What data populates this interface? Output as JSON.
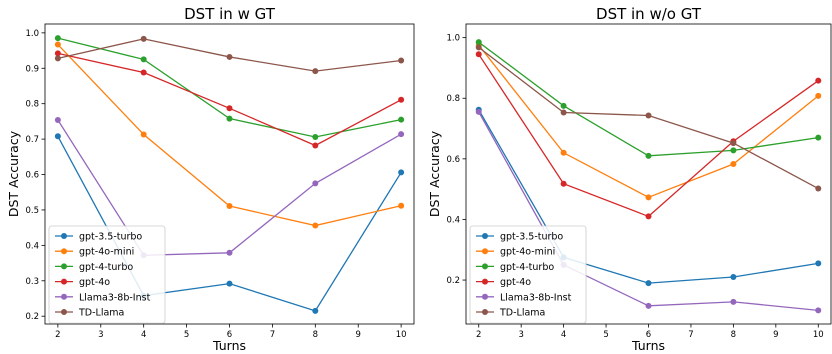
{
  "chart_data": [
    {
      "type": "line",
      "title": "DST in w GT",
      "xlabel": "Turns",
      "ylabel": "DST Accuracy",
      "x": [
        2,
        4,
        6,
        8,
        10
      ],
      "xticks": [
        2,
        3,
        4,
        5,
        6,
        7,
        8,
        9,
        10
      ],
      "xlim": [
        1.7,
        10.3
      ],
      "yticks": [
        0.2,
        0.3,
        0.4,
        0.5,
        0.6,
        0.7,
        0.8,
        0.9,
        1.0
      ],
      "ytick_labels": [
        "0.2",
        "0.3",
        "0.4",
        "0.5",
        "0.6",
        "0.7",
        "0.8",
        "0.9",
        "1.0"
      ],
      "ylim": [
        0.178,
        1.025
      ],
      "legend": "lower-left",
      "grid": false,
      "series": [
        {
          "name": "gpt-3.5-turbo",
          "color": "#1f77b4",
          "values": [
            0.708,
            0.258,
            0.292,
            0.215,
            0.606
          ]
        },
        {
          "name": "gpt-4o-mini",
          "color": "#ff7f0e",
          "values": [
            0.967,
            0.713,
            0.511,
            0.456,
            0.512
          ]
        },
        {
          "name": "gpt-4-turbo",
          "color": "#2ca02c",
          "values": [
            0.985,
            0.925,
            0.758,
            0.706,
            0.755
          ]
        },
        {
          "name": "gpt-4o",
          "color": "#d62728",
          "values": [
            0.942,
            0.888,
            0.787,
            0.682,
            0.811
          ]
        },
        {
          "name": "Llama3-8b-Inst",
          "color": "#9467bd",
          "values": [
            0.754,
            0.372,
            0.379,
            0.575,
            0.714
          ]
        },
        {
          "name": "TD-Llama",
          "color": "#8c564b",
          "values": [
            0.928,
            0.983,
            0.932,
            0.892,
            0.922
          ]
        }
      ]
    },
    {
      "type": "line",
      "title": "DST in w/o GT",
      "xlabel": "Turns",
      "ylabel": "DST Accuracy",
      "x": [
        2,
        4,
        6,
        8,
        10
      ],
      "xticks": [
        2,
        3,
        4,
        5,
        6,
        7,
        8,
        9,
        10
      ],
      "xlim": [
        1.7,
        10.3
      ],
      "yticks": [
        0.2,
        0.4,
        0.6,
        0.8,
        1.0
      ],
      "ytick_labels": [
        "0.2",
        "0.4",
        "0.6",
        "0.8",
        "1.0"
      ],
      "ylim": [
        0.055,
        1.045
      ],
      "legend": "lower-left",
      "grid": false,
      "series": [
        {
          "name": "gpt-3.5-turbo",
          "color": "#1f77b4",
          "values": [
            0.762,
            0.275,
            0.19,
            0.21,
            0.255
          ]
        },
        {
          "name": "gpt-4o-mini",
          "color": "#ff7f0e",
          "values": [
            0.975,
            0.62,
            0.473,
            0.583,
            0.808
          ]
        },
        {
          "name": "gpt-4-turbo",
          "color": "#2ca02c",
          "values": [
            0.985,
            0.775,
            0.61,
            0.628,
            0.67
          ]
        },
        {
          "name": "gpt-4o",
          "color": "#d62728",
          "values": [
            0.945,
            0.518,
            0.41,
            0.658,
            0.858
          ]
        },
        {
          "name": "Llama3-8b-Inst",
          "color": "#9467bd",
          "values": [
            0.755,
            0.25,
            0.115,
            0.128,
            0.1
          ]
        },
        {
          "name": "TD-Llama",
          "color": "#8c564b",
          "values": [
            0.968,
            0.753,
            0.743,
            0.652,
            0.502
          ]
        }
      ]
    }
  ]
}
